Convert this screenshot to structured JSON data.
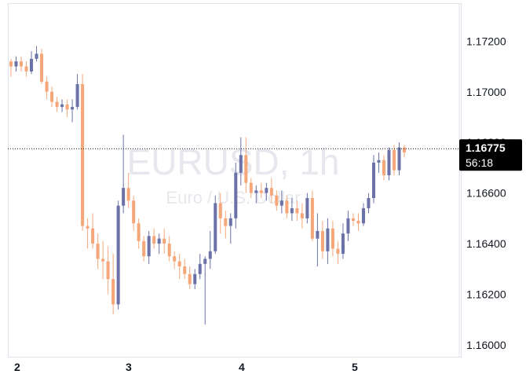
{
  "chart_data": {
    "type": "candlestick",
    "symbol_watermark": "EURUSD, 1h",
    "symbol_watermark_sub": "Euro / U.S. Dollar",
    "x_tick_labels": [
      "2",
      "3",
      "4",
      "5"
    ],
    "y_ticks": [
      "1.17200",
      "1.17000",
      "1.16800",
      "1.16600",
      "1.16400",
      "1.16200",
      "1.16000"
    ],
    "y_tick_values": [
      1.172,
      1.17,
      1.168,
      1.166,
      1.164,
      1.162,
      1.16
    ],
    "ylim": [
      1.1595,
      1.1735
    ],
    "last_price": 1.16775,
    "last_price_label": "1.16775",
    "countdown": "56:18",
    "colors": {
      "up": "#6a72a8",
      "down": "#f5a77a",
      "text": "#131722",
      "grid": "#e0e3eb",
      "badge": "#000000"
    },
    "candles": [
      [
        1.1712,
        1.1713,
        1.1706,
        1.171
      ],
      [
        1.171,
        1.1714,
        1.1708,
        1.1712
      ],
      [
        1.1712,
        1.1714,
        1.1708,
        1.171
      ],
      [
        1.171,
        1.1712,
        1.1706,
        1.1708
      ],
      [
        1.1708,
        1.1716,
        1.1707,
        1.1713
      ],
      [
        1.1713,
        1.1718,
        1.1712,
        1.1715
      ],
      [
        1.1715,
        1.1717,
        1.1703,
        1.1704
      ],
      [
        1.1704,
        1.1706,
        1.1697,
        1.17
      ],
      [
        1.17,
        1.1702,
        1.1694,
        1.1696
      ],
      [
        1.1696,
        1.1698,
        1.1692,
        1.1694
      ],
      [
        1.1694,
        1.1697,
        1.1692,
        1.1695
      ],
      [
        1.1695,
        1.1697,
        1.169,
        1.1693
      ],
      [
        1.1693,
        1.1697,
        1.1688,
        1.1694
      ],
      [
        1.1694,
        1.1707,
        1.1693,
        1.1703
      ],
      [
        1.1703,
        1.1707,
        1.1645,
        1.1647
      ],
      [
        1.1647,
        1.165,
        1.1638,
        1.1646
      ],
      [
        1.1646,
        1.1652,
        1.1638,
        1.164
      ],
      [
        1.164,
        1.1644,
        1.163,
        1.1634
      ],
      [
        1.1634,
        1.1641,
        1.1626,
        1.1633
      ],
      [
        1.1633,
        1.1639,
        1.162,
        1.1626
      ],
      [
        1.1626,
        1.1636,
        1.1612,
        1.1616
      ],
      [
        1.1616,
        1.1657,
        1.1614,
        1.1655
      ],
      [
        1.1655,
        1.1683,
        1.1652,
        1.1662
      ],
      [
        1.1662,
        1.1668,
        1.1654,
        1.1657
      ],
      [
        1.1657,
        1.1659,
        1.1645,
        1.1648
      ],
      [
        1.1648,
        1.165,
        1.1638,
        1.1641
      ],
      [
        1.1641,
        1.1643,
        1.1633,
        1.1635
      ],
      [
        1.1635,
        1.1645,
        1.1632,
        1.1643
      ],
      [
        1.1643,
        1.1646,
        1.1638,
        1.164
      ],
      [
        1.164,
        1.1644,
        1.1636,
        1.1642
      ],
      [
        1.1642,
        1.1646,
        1.1636,
        1.164
      ],
      [
        1.164,
        1.1643,
        1.1633,
        1.1635
      ],
      [
        1.1635,
        1.1637,
        1.163,
        1.1633
      ],
      [
        1.1633,
        1.1636,
        1.1626,
        1.1631
      ],
      [
        1.1631,
        1.1634,
        1.1626,
        1.1628
      ],
      [
        1.1628,
        1.1631,
        1.1622,
        1.1624
      ],
      [
        1.1624,
        1.163,
        1.1622,
        1.1628
      ],
      [
        1.1628,
        1.1636,
        1.1626,
        1.1632
      ],
      [
        1.1632,
        1.1635,
        1.1608,
        1.1634
      ],
      [
        1.1634,
        1.1645,
        1.163,
        1.1637
      ],
      [
        1.1637,
        1.1659,
        1.1636,
        1.1656
      ],
      [
        1.1656,
        1.166,
        1.1644,
        1.165
      ],
      [
        1.165,
        1.1653,
        1.1642,
        1.1647
      ],
      [
        1.1647,
        1.1652,
        1.164,
        1.165
      ],
      [
        1.165,
        1.1672,
        1.1646,
        1.1668
      ],
      [
        1.1668,
        1.1682,
        1.1663,
        1.1675
      ],
      [
        1.1675,
        1.1682,
        1.166,
        1.1664
      ],
      [
        1.1664,
        1.1666,
        1.1658,
        1.166
      ],
      [
        1.166,
        1.1663,
        1.1656,
        1.1661
      ],
      [
        1.1661,
        1.1664,
        1.1658,
        1.166
      ],
      [
        1.166,
        1.1664,
        1.1657,
        1.1662
      ],
      [
        1.1662,
        1.1666,
        1.1656,
        1.1659
      ],
      [
        1.1659,
        1.1661,
        1.1653,
        1.1655
      ],
      [
        1.1655,
        1.1661,
        1.1652,
        1.1657
      ],
      [
        1.1657,
        1.1659,
        1.165,
        1.1652
      ],
      [
        1.1652,
        1.1658,
        1.1649,
        1.1654
      ],
      [
        1.1654,
        1.1657,
        1.1649,
        1.1652
      ],
      [
        1.1652,
        1.1656,
        1.1646,
        1.165
      ],
      [
        1.165,
        1.166,
        1.1648,
        1.1658
      ],
      [
        1.1658,
        1.1661,
        1.1641,
        1.1642
      ],
      [
        1.1642,
        1.1652,
        1.1631,
        1.1645
      ],
      [
        1.1645,
        1.1649,
        1.1634,
        1.1637
      ],
      [
        1.1637,
        1.165,
        1.1632,
        1.1646
      ],
      [
        1.1646,
        1.1649,
        1.1635,
        1.1638
      ],
      [
        1.1638,
        1.1641,
        1.1632,
        1.1636
      ],
      [
        1.1636,
        1.1648,
        1.1634,
        1.1644
      ],
      [
        1.1644,
        1.1653,
        1.1641,
        1.165
      ],
      [
        1.165,
        1.1652,
        1.1647,
        1.1649
      ],
      [
        1.1649,
        1.1652,
        1.1645,
        1.1648
      ],
      [
        1.1648,
        1.1656,
        1.1647,
        1.1654
      ],
      [
        1.1654,
        1.166,
        1.1652,
        1.1658
      ],
      [
        1.1658,
        1.1675,
        1.1656,
        1.1672
      ],
      [
        1.1672,
        1.1676,
        1.1668,
        1.1673
      ],
      [
        1.1673,
        1.1675,
        1.1665,
        1.1667
      ],
      [
        1.1667,
        1.1678,
        1.1665,
        1.1677
      ],
      [
        1.1677,
        1.1679,
        1.1667,
        1.1669
      ],
      [
        1.1669,
        1.168,
        1.1667,
        1.1678
      ],
      [
        1.1678,
        1.1679,
        1.1674,
        1.1676
      ]
    ]
  }
}
